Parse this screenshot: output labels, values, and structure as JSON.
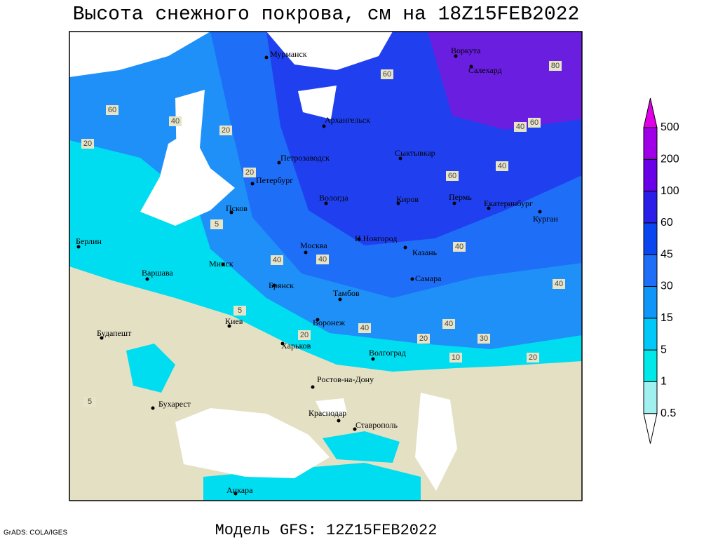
{
  "header": {
    "title": "Высота снежного покрова, см на 18Z15FEB2022"
  },
  "footer": {
    "model": "Модель GFS: 12Z15FEB2022",
    "credit": "GrADS: COLA/IGES"
  },
  "cities": [
    "Мурманск",
    "Воркута",
    "Салехард",
    "Архангельск",
    "Сыктывкар",
    "Петрозаводск",
    "Петербург",
    "Вологда",
    "Киров",
    "Пермь",
    "Екатеринбург",
    "Курган",
    "Псков",
    "Берлин",
    "Н.Новгород",
    "Москва",
    "Казань",
    "Минск",
    "Варшава",
    "Самара",
    "Брянск",
    "Тамбов",
    "Киев",
    "Воронеж",
    "Будапешт",
    "Харьков",
    "Волгоград",
    "Ростов-на-Дону",
    "Бухарест",
    "Краснодар",
    "Ставрополь",
    "Анкара"
  ],
  "contour_labels": [
    60,
    40,
    20,
    20,
    60,
    80,
    60,
    40,
    40,
    60,
    40,
    40,
    20,
    40,
    40,
    40,
    40,
    30,
    20,
    10,
    5,
    5,
    20,
    5,
    20
  ],
  "legend": {
    "levels": [
      0.5,
      1,
      5,
      15,
      30,
      45,
      60,
      100,
      200,
      500
    ],
    "colors": [
      "#ffffff",
      "#a0f0f0",
      "#00e8e8",
      "#00c8f8",
      "#1096f8",
      "#1e6ef8",
      "#0a46f0",
      "#2a1ee8",
      "#6a00e8",
      "#a000e8",
      "#e000e8"
    ]
  }
}
